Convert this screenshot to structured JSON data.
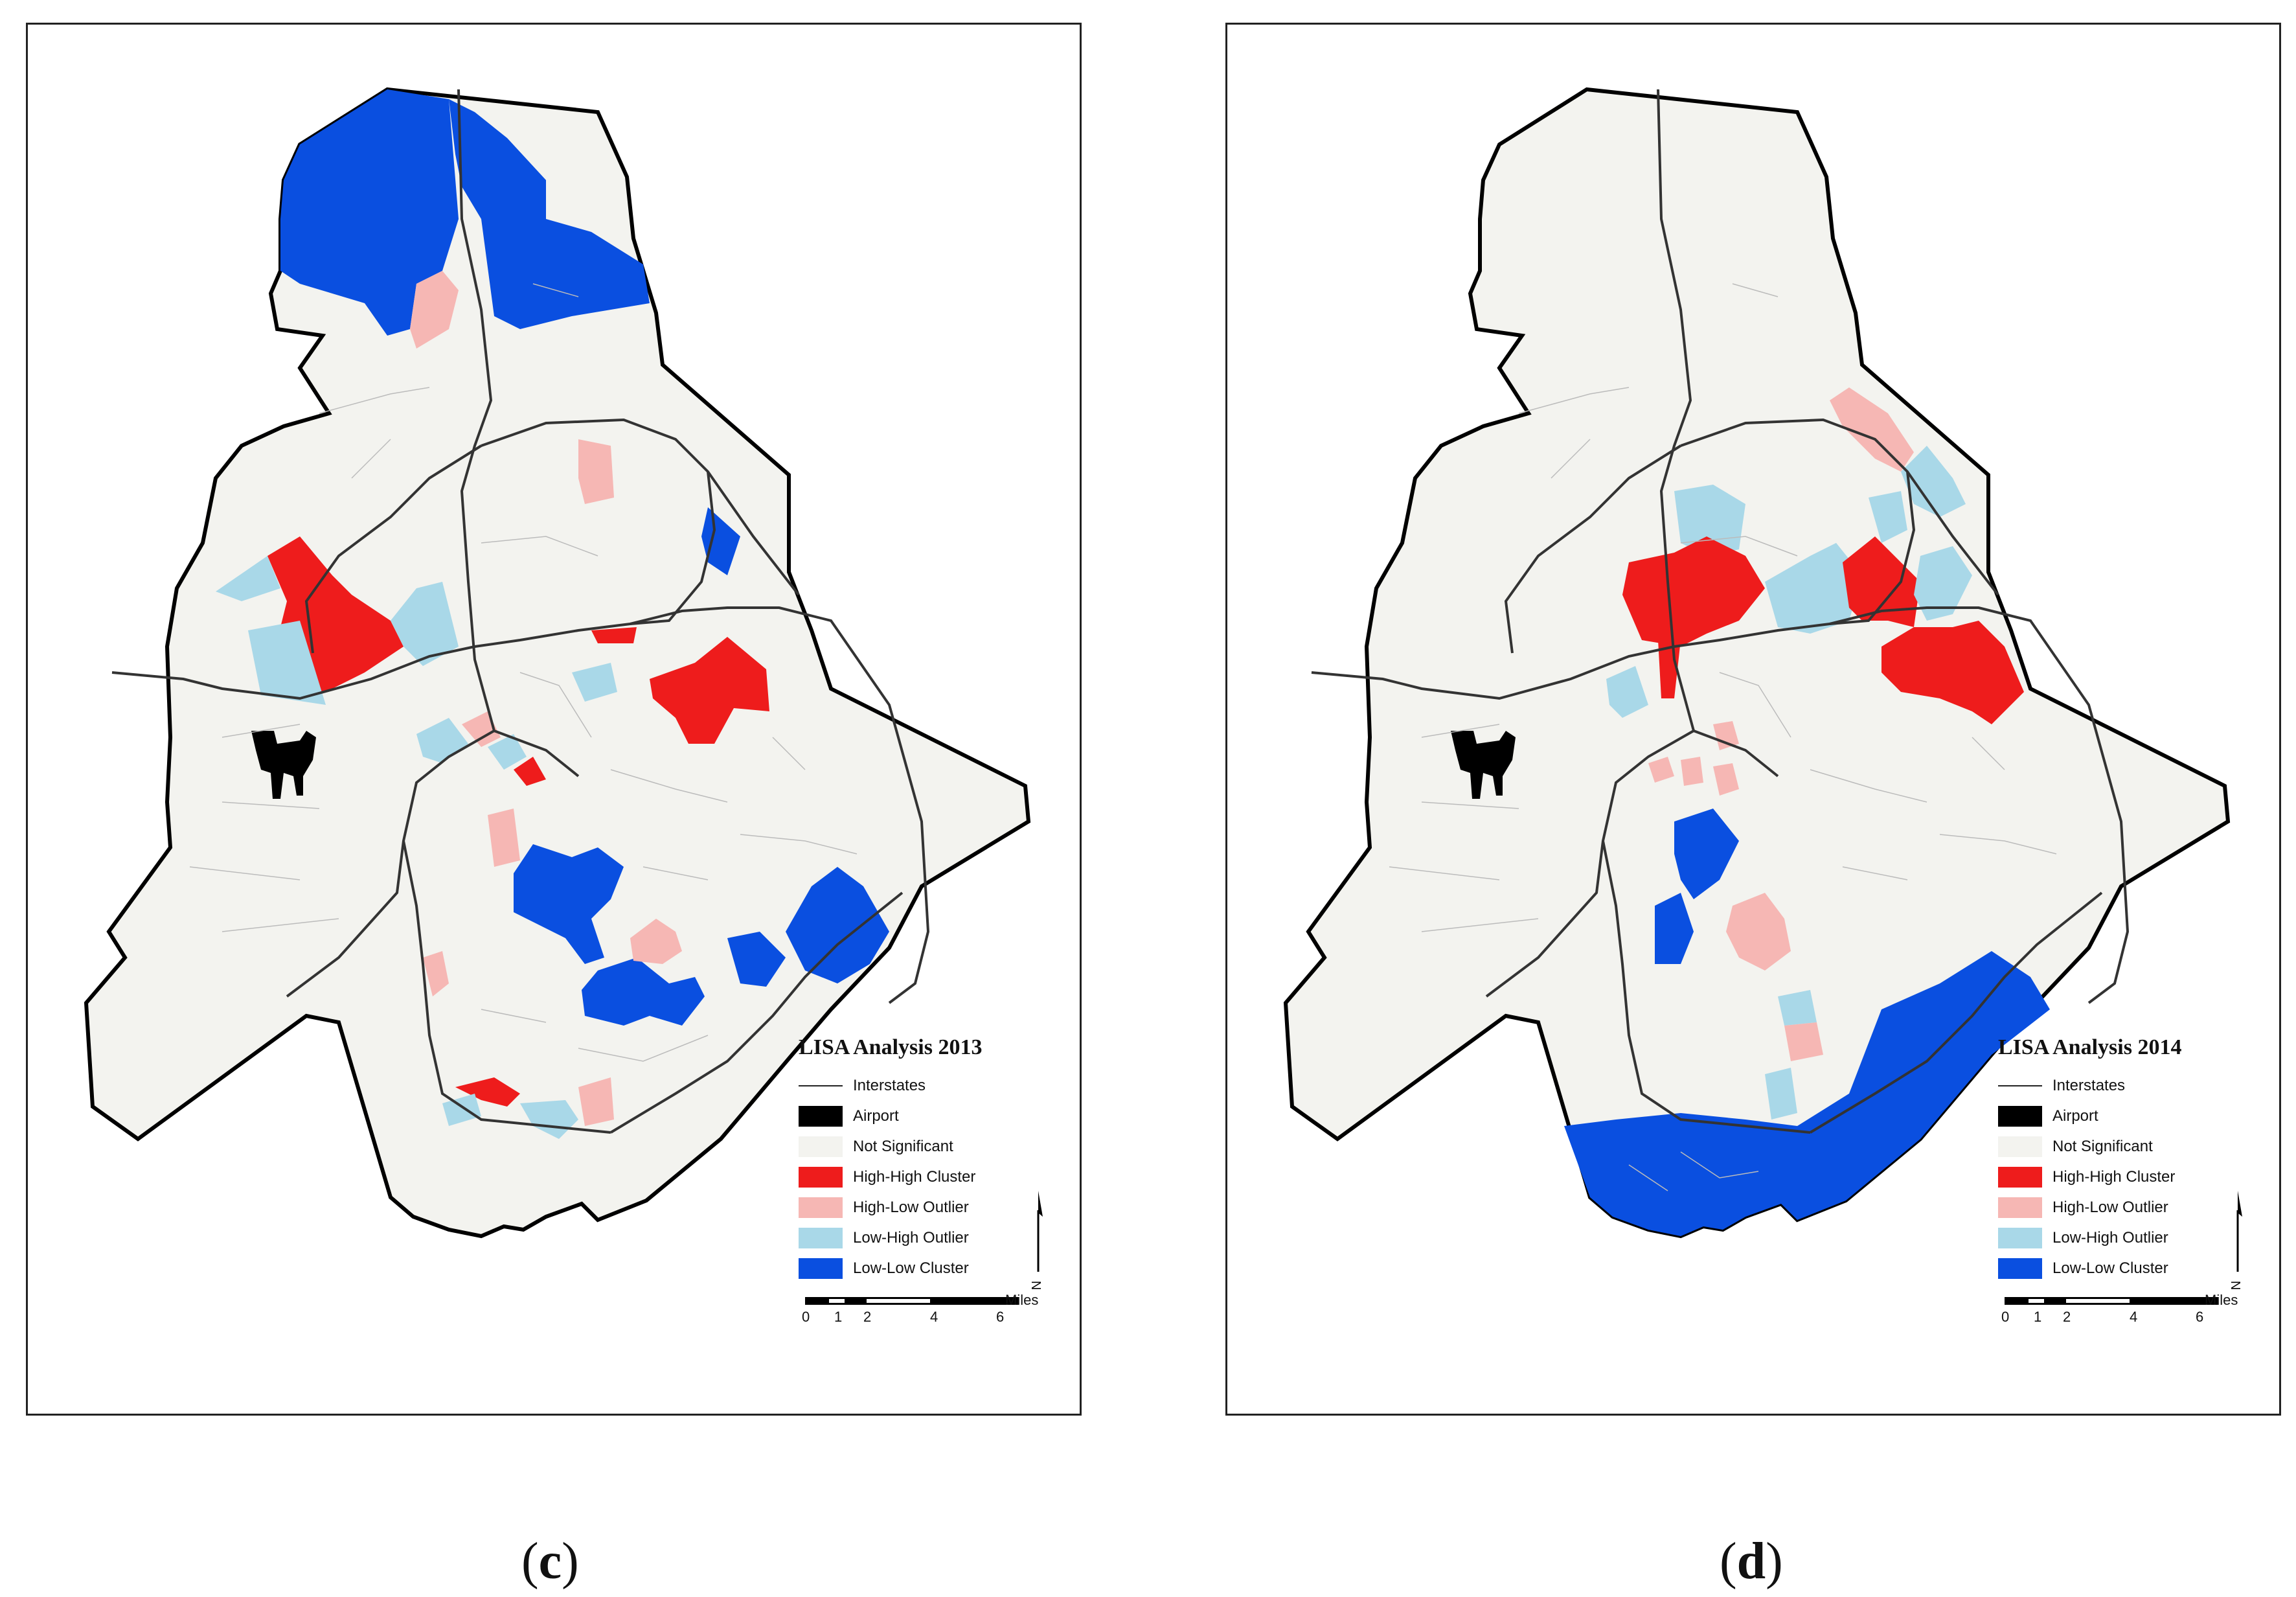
{
  "panels": [
    {
      "id": "c",
      "title": "LISA Analysis 2013",
      "caption_open": "(",
      "caption_letter": "c",
      "caption_close": ")"
    },
    {
      "id": "d",
      "title": "LISA Analysis 2014",
      "caption_open": "(",
      "caption_letter": "d",
      "caption_close": ")"
    }
  ],
  "legend": {
    "items": [
      {
        "label": "Interstates",
        "kind": "line",
        "color": "#222222"
      },
      {
        "label": "Airport",
        "kind": "fill",
        "color": "#000000"
      },
      {
        "label": "Not Significant",
        "kind": "fill",
        "color": "#f3f3ef"
      },
      {
        "label": "High-High Cluster",
        "kind": "fill",
        "color": "#ee1c1c"
      },
      {
        "label": "High-Low Outlier",
        "kind": "fill",
        "color": "#f6b7b4"
      },
      {
        "label": "Low-High Outlier",
        "kind": "fill",
        "color": "#a9d8e8"
      },
      {
        "label": "Low-Low Cluster",
        "kind": "fill",
        "color": "#0a4fe0"
      }
    ]
  },
  "scale": {
    "unit": "Miles",
    "ticks": [
      "0",
      "1",
      "2",
      "4",
      "6"
    ],
    "north_label": "N"
  },
  "colors": {
    "background": "#f3f3ef",
    "high_high": "#ee1c1c",
    "high_low": "#f6b7b4",
    "low_high": "#a9d8e8",
    "low_low": "#0a4fe0",
    "road": "#333333",
    "boundary": "#000000"
  }
}
